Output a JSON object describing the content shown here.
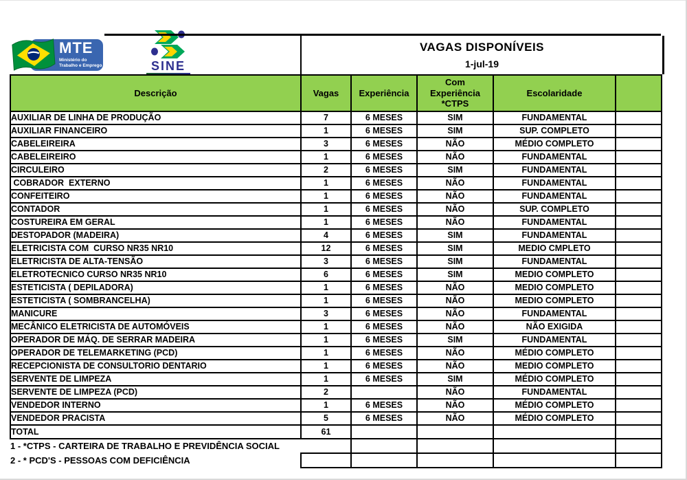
{
  "logos": {
    "mte": {
      "acronym": "MTE",
      "ministry_line1": "Ministério do",
      "ministry_line2": "Trabalho e Emprego",
      "plate_color": "#3a66b0",
      "flag_green": "#009c3b",
      "flag_yellow": "#ffdf00",
      "flag_blue": "#002776"
    },
    "sine": {
      "name": "SINE",
      "brand_color": "#2d2f8f",
      "mark_green": "#00a859",
      "mark_yellow": "#ffd400",
      "mark_blue": "#2d2f8f"
    }
  },
  "header": {
    "title": "VAGAS DISPONÍVEIS",
    "date": "1-jul-19"
  },
  "table": {
    "header_fill": "#92d050",
    "border_color": "#000000",
    "columns": [
      "Descrição",
      "Vagas",
      "Experiência",
      "Com\nExperiência\n*CTPS",
      "Escolaridade",
      ""
    ],
    "rows": [
      [
        "AUXILIAR DE LINHA DE PRODUÇÃO",
        "7",
        "6 MESES",
        "SIM",
        "FUNDAMENTAL"
      ],
      [
        "AUXILIAR FINANCEIRO",
        "1",
        "6 MESES",
        "SIM",
        "SUP. COMPLETO"
      ],
      [
        "CABELEIREIRA",
        "3",
        "6 MESES",
        "NÃO",
        "MÉDIO COMPLETO"
      ],
      [
        "CABELEIREIRO",
        "1",
        "6 MESES",
        "NÃO",
        "FUNDAMENTAL"
      ],
      [
        "CIRCULEIRO",
        "2",
        "6 MESES",
        "SIM",
        "FUNDAMENTAL"
      ],
      [
        " COBRADOR  EXTERNO",
        "1",
        "6 MESES",
        "NÃO",
        "FUNDAMENTAL"
      ],
      [
        "CONFEITEIRO",
        "1",
        "6 MESES",
        "NÃO",
        "FUNDAMENTAL"
      ],
      [
        "CONTADOR",
        "1",
        "6 MESES",
        "NÃO",
        "SUP. COMPLETO"
      ],
      [
        "COSTUREIRA EM GERAL",
        "1",
        "6 MESES",
        "NÃO",
        "FUNDAMENTAL"
      ],
      [
        "DESTOPADOR (MADEIRA)",
        "4",
        "6 MESES",
        "SIM",
        "FUNDAMENTAL"
      ],
      [
        "ELETRICISTA COM  CURSO NR35 NR10",
        "12",
        "6 MESES",
        "SIM",
        "MEDIO CMPLETO"
      ],
      [
        "ELETRICISTA DE ALTA-TENSÃO",
        "3",
        "6 MESES",
        "SIM",
        "FUNDAMENTAL"
      ],
      [
        "ELETROTECNICO CURSO NR35 NR10",
        "6",
        "6 MESES",
        "SIM",
        "MEDIO COMPLETO"
      ],
      [
        "ESTETICISTA ( DEPILADORA)",
        "1",
        "6 MESES",
        "NÃO",
        "MEDIO COMPLETO"
      ],
      [
        "ESTETICISTA ( SOMBRANCELHA)",
        "1",
        "6 MESES",
        "NÃO",
        "MEDIO COMPLETO"
      ],
      [
        "MANICURE",
        "3",
        "6 MESES",
        "NÃO",
        "FUNDAMENTAL"
      ],
      [
        "MECÂNICO ELETRICISTA DE AUTOMÓVEIS",
        "1",
        "6 MESES",
        "NÃO",
        "NÃO EXIGIDA"
      ],
      [
        "OPERADOR DE MÁQ. DE SERRAR MADEIRA",
        "1",
        "6 MESES",
        "SIM",
        "FUNDAMENTAL"
      ],
      [
        "OPERADOR DE TELEMARKETING (PCD)",
        "1",
        "6 MESES",
        "NÃO",
        "MÉDIO COMPLETO"
      ],
      [
        "RECEPCIONISTA DE CONSULTORIO DENTARIO",
        "1",
        "6 MESES",
        "NÃO",
        "MEDIO COMPLETO"
      ],
      [
        "SERVENTE DE LIMPEZA",
        "1",
        "6 MESES",
        "SIM",
        "MÉDIO COMPLETO"
      ],
      [
        "SERVENTE DE LIMPEZA (PCD)",
        "2",
        "",
        "NÃO",
        "FUNDAMENTAL"
      ],
      [
        "VENDEDOR INTERNO",
        "1",
        "6 MESES",
        "NÃO",
        "MÉDIO COMPLETO"
      ],
      [
        "VENDEDOR PRACISTA",
        "5",
        "6 MESES",
        "NÃO",
        "MÉDIO COMPLETO"
      ]
    ],
    "total_label": "TOTAL",
    "total_value": "61"
  },
  "footnotes": [
    "1 - *CTPS - CARTEIRA DE TRABALHO E PREVIDÊNCIA SOCIAL",
    "2 - * PCD'S - PESSOAS COM DEFICIÊNCIA"
  ]
}
